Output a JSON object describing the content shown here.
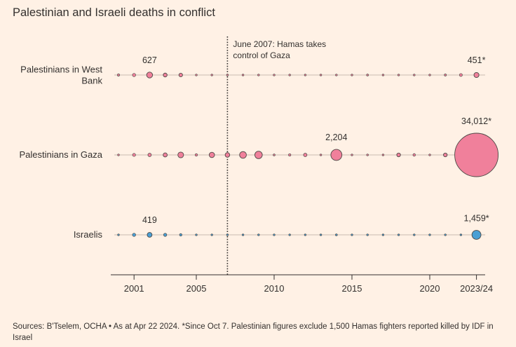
{
  "title": "Palestinian and Israeli deaths in conflict",
  "sources": "Sources: B'Tselem, OCHA • As at Apr 22 2024. *Since Oct 7. Palestinian figures exclude 1,500 Hamas fighters reported killed by IDF in Israel",
  "colors": {
    "background": "#fff1e5",
    "palestinian": "#f0809b",
    "israeli": "#4a9fd4",
    "stroke": "#4d4845",
    "axis": "#33302e",
    "guide": "#c9bcb1"
  },
  "chart_data": {
    "type": "scatter",
    "subtype": "dot-strip",
    "title": "Palestinian and Israeli deaths in conflict",
    "years": [
      2000,
      2001,
      2002,
      2003,
      2004,
      2005,
      2006,
      2007,
      2008,
      2009,
      2010,
      2011,
      2012,
      2013,
      2014,
      2015,
      2016,
      2017,
      2018,
      2019,
      2020,
      2021,
      2022,
      2023
    ],
    "x_tick_labels": [
      {
        "year": 2001,
        "label": "2001"
      },
      {
        "year": 2005,
        "label": "2005"
      },
      {
        "year": 2010,
        "label": "2010"
      },
      {
        "year": 2015,
        "label": "2015"
      },
      {
        "year": 2020,
        "label": "2020"
      },
      {
        "year": 2023,
        "label": "2023/24"
      }
    ],
    "series": [
      {
        "name": "Palestinians in West Bank",
        "label": "Palestinians in West\nBank",
        "color": "#f0809b",
        "values": [
          90,
          190,
          627,
          270,
          240,
          60,
          50,
          20,
          40,
          20,
          15,
          15,
          10,
          15,
          50,
          30,
          70,
          20,
          30,
          20,
          20,
          80,
          150,
          451
        ],
        "labels": [
          {
            "year": 2002,
            "text": "627"
          },
          {
            "year": 2023,
            "text": "451*"
          }
        ]
      },
      {
        "name": "Palestinians in Gaza",
        "label": "Palestinians in Gaza",
        "color": "#f0809b",
        "values": [
          50,
          170,
          220,
          300,
          590,
          110,
          520,
          380,
          830,
          1000,
          70,
          100,
          220,
          10,
          2204,
          20,
          20,
          10,
          250,
          120,
          10,
          250,
          50,
          34012
        ],
        "labels": [
          {
            "year": 2014,
            "text": "2,204"
          },
          {
            "year": 2023,
            "text": "34,012*"
          }
        ]
      },
      {
        "name": "Israelis",
        "label": "Israelis",
        "color": "#4a9fd4",
        "values": [
          40,
          190,
          419,
          180,
          110,
          50,
          20,
          10,
          30,
          10,
          10,
          20,
          10,
          5,
          70,
          20,
          20,
          20,
          10,
          10,
          10,
          20,
          30,
          1459
        ],
        "labels": [
          {
            "year": 2002,
            "text": "419"
          },
          {
            "year": 2023,
            "text": "1,459*"
          }
        ]
      }
    ],
    "annotation": {
      "year": 2007,
      "lines": [
        "June 2007: Hamas takes",
        "control of Gaza"
      ]
    }
  }
}
